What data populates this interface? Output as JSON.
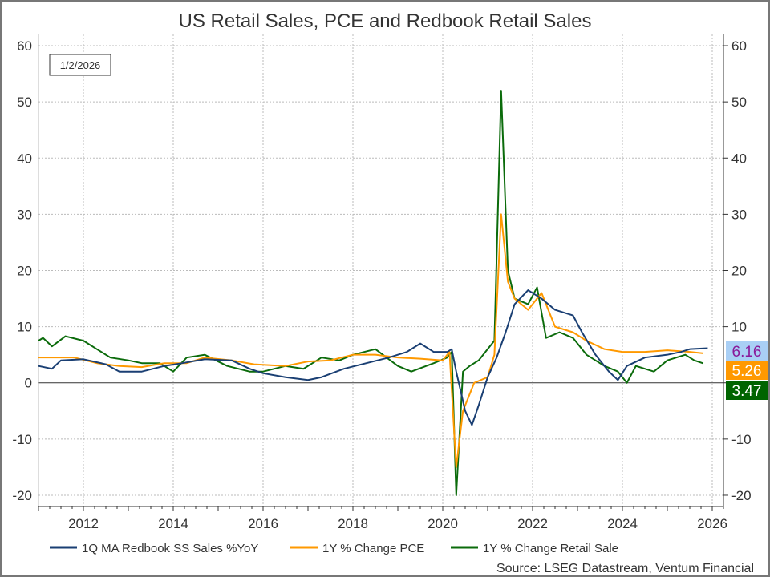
{
  "chart_data": {
    "type": "line",
    "title": "US Retail Sales, PCE and Redbook Retail Sales",
    "date_box": "1/2/2026",
    "source": "Source: LSEG Datastream, Ventum Financial",
    "xlim": [
      2011.0,
      2026.25
    ],
    "ylim": [
      -22,
      62
    ],
    "x_ticks": [
      2012,
      2014,
      2016,
      2018,
      2020,
      2022,
      2024,
      2026
    ],
    "y_ticks": [
      -20,
      -10,
      0,
      10,
      20,
      30,
      40,
      50,
      60
    ],
    "grid": true,
    "legend_position": "bottom",
    "series": [
      {
        "name": "1Q MA Redbook SS Sales %YoY",
        "color": "#1a3f73",
        "last_label": "6.16",
        "label_bg": "#a9cff5",
        "label_fg": "#8a1a9a",
        "points": [
          [
            2011.0,
            3
          ],
          [
            2011.3,
            2.5
          ],
          [
            2011.5,
            4
          ],
          [
            2012.0,
            4.2
          ],
          [
            2012.5,
            3.3
          ],
          [
            2012.8,
            2
          ],
          [
            2013.3,
            2
          ],
          [
            2013.8,
            3
          ],
          [
            2014.2,
            3.5
          ],
          [
            2014.7,
            4.2
          ],
          [
            2015.3,
            4
          ],
          [
            2015.7,
            2.5
          ],
          [
            2016.0,
            1.7
          ],
          [
            2016.5,
            1
          ],
          [
            2017.0,
            0.5
          ],
          [
            2017.3,
            1
          ],
          [
            2017.8,
            2.5
          ],
          [
            2018.3,
            3.5
          ],
          [
            2018.8,
            4.5
          ],
          [
            2019.2,
            5.5
          ],
          [
            2019.5,
            7
          ],
          [
            2019.8,
            5.5
          ],
          [
            2020.1,
            5.5
          ],
          [
            2020.2,
            6
          ],
          [
            2020.3,
            2
          ],
          [
            2020.5,
            -5
          ],
          [
            2020.65,
            -7.5
          ],
          [
            2020.8,
            -4
          ],
          [
            2021.0,
            1
          ],
          [
            2021.2,
            4.5
          ],
          [
            2021.4,
            9
          ],
          [
            2021.6,
            14
          ],
          [
            2021.9,
            16.5
          ],
          [
            2022.2,
            15
          ],
          [
            2022.5,
            13
          ],
          [
            2022.9,
            12
          ],
          [
            2023.1,
            9
          ],
          [
            2023.4,
            5
          ],
          [
            2023.7,
            2
          ],
          [
            2023.9,
            0.5
          ],
          [
            2024.1,
            3
          ],
          [
            2024.5,
            4.5
          ],
          [
            2025.0,
            5
          ],
          [
            2025.3,
            5.5
          ],
          [
            2025.5,
            6
          ],
          [
            2025.9,
            6.16
          ]
        ]
      },
      {
        "name": "1Y % Change PCE",
        "color": "#ff9900",
        "last_label": "5.26",
        "label_bg": "#ff9900",
        "label_fg": "#ffffff",
        "points": [
          [
            2011.0,
            4.5
          ],
          [
            2011.8,
            4.5
          ],
          [
            2012.3,
            3.5
          ],
          [
            2012.8,
            3
          ],
          [
            2013.3,
            2.8
          ],
          [
            2013.8,
            3.5
          ],
          [
            2014.3,
            3.5
          ],
          [
            2014.7,
            4.5
          ],
          [
            2015.3,
            4
          ],
          [
            2015.8,
            3.3
          ],
          [
            2016.5,
            3
          ],
          [
            2017.0,
            3.8
          ],
          [
            2017.5,
            4
          ],
          [
            2018.0,
            5
          ],
          [
            2018.5,
            5
          ],
          [
            2019.0,
            4.5
          ],
          [
            2019.5,
            4.3
          ],
          [
            2020.0,
            4
          ],
          [
            2020.15,
            5.5
          ],
          [
            2020.3,
            -15
          ],
          [
            2020.45,
            -5
          ],
          [
            2020.7,
            0
          ],
          [
            2021.0,
            1
          ],
          [
            2021.15,
            5
          ],
          [
            2021.3,
            30
          ],
          [
            2021.45,
            18
          ],
          [
            2021.6,
            15
          ],
          [
            2021.9,
            13
          ],
          [
            2022.2,
            16
          ],
          [
            2022.5,
            10
          ],
          [
            2022.9,
            9
          ],
          [
            2023.2,
            7.5
          ],
          [
            2023.6,
            6
          ],
          [
            2024.0,
            5.5
          ],
          [
            2024.5,
            5.5
          ],
          [
            2025.0,
            5.8
          ],
          [
            2025.5,
            5.5
          ],
          [
            2025.8,
            5.26
          ]
        ]
      },
      {
        "name": "1Y % Change Retail Sale",
        "color": "#0b6b0b",
        "last_label": "3.47",
        "label_bg": "#006400",
        "label_fg": "#ffffff",
        "points": [
          [
            2011.0,
            7.5
          ],
          [
            2011.1,
            8
          ],
          [
            2011.3,
            6.5
          ],
          [
            2011.6,
            8.3
          ],
          [
            2012.0,
            7.5
          ],
          [
            2012.3,
            6
          ],
          [
            2012.6,
            4.5
          ],
          [
            2013.0,
            4
          ],
          [
            2013.3,
            3.5
          ],
          [
            2013.7,
            3.5
          ],
          [
            2014.0,
            2
          ],
          [
            2014.3,
            4.5
          ],
          [
            2014.7,
            5
          ],
          [
            2015.2,
            3
          ],
          [
            2015.7,
            2
          ],
          [
            2016.0,
            2
          ],
          [
            2016.5,
            3
          ],
          [
            2016.9,
            2.5
          ],
          [
            2017.3,
            4.5
          ],
          [
            2017.7,
            4
          ],
          [
            2018.0,
            5
          ],
          [
            2018.5,
            6
          ],
          [
            2019.0,
            3
          ],
          [
            2019.3,
            2
          ],
          [
            2019.8,
            3.5
          ],
          [
            2020.1,
            4.5
          ],
          [
            2020.2,
            5.5
          ],
          [
            2020.3,
            -20
          ],
          [
            2020.45,
            2
          ],
          [
            2020.6,
            3
          ],
          [
            2020.8,
            4
          ],
          [
            2021.0,
            6
          ],
          [
            2021.15,
            7.5
          ],
          [
            2021.3,
            52
          ],
          [
            2021.45,
            20
          ],
          [
            2021.6,
            15
          ],
          [
            2021.9,
            14
          ],
          [
            2022.1,
            17
          ],
          [
            2022.3,
            8
          ],
          [
            2022.6,
            9
          ],
          [
            2022.9,
            8
          ],
          [
            2023.2,
            5
          ],
          [
            2023.6,
            3
          ],
          [
            2023.9,
            2
          ],
          [
            2024.1,
            0
          ],
          [
            2024.3,
            3
          ],
          [
            2024.7,
            2
          ],
          [
            2025.0,
            4
          ],
          [
            2025.4,
            5
          ],
          [
            2025.6,
            4
          ],
          [
            2025.8,
            3.47
          ]
        ]
      }
    ]
  }
}
